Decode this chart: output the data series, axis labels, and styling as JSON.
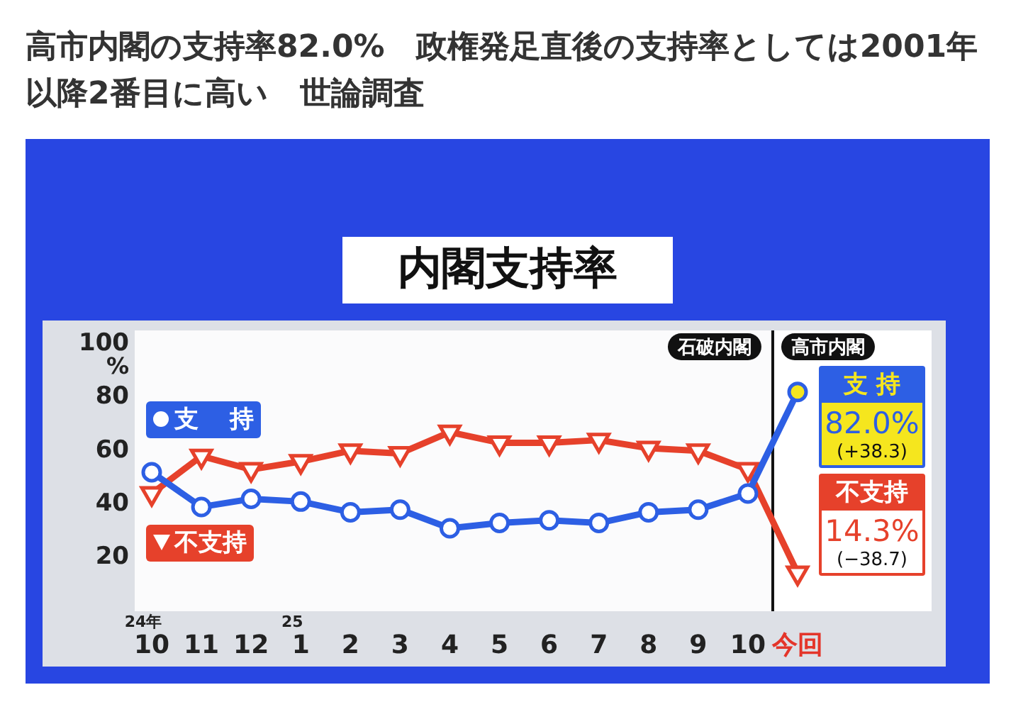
{
  "chart_data": {
    "type": "line",
    "title": "高市内閣の支持率82.0%　政権発足直後の支持率としては2001年以降2番目に高い　世論調査",
    "subtitle": "内閣支持率",
    "ylabel": "%",
    "categories": [
      "24年 10",
      "11",
      "12",
      "25 1",
      "2",
      "3",
      "4",
      "5",
      "6",
      "7",
      "8",
      "9",
      "10",
      "今回"
    ],
    "series": [
      {
        "name": "支 持",
        "color": "#2d5fe4",
        "marker": "circle",
        "values": [
          52,
          39,
          42,
          41,
          37,
          38,
          31,
          33,
          34,
          33,
          37,
          38,
          44,
          82.0
        ],
        "colors": [
          "#ffffff",
          "#ffffff",
          "#ffffff",
          "#ffffff",
          "#ffffff",
          "#ffffff",
          "#ffffff",
          "#ffffff",
          "#ffffff",
          "#ffffff",
          "#ffffff",
          "#ffffff",
          "#ffffff",
          "#f5e61e"
        ],
        "value_labels": [
          null,
          null,
          null,
          null,
          null,
          null,
          null,
          null,
          null,
          null,
          null,
          null,
          null,
          "82.0%"
        ]
      },
      {
        "name": "不支持",
        "color": "#e6412b",
        "marker": "triangle",
        "values": [
          44,
          58,
          53,
          56,
          60,
          59,
          67,
          63,
          63,
          64,
          61,
          60,
          53,
          14.3
        ],
        "value_labels": [
          null,
          null,
          null,
          null,
          null,
          null,
          null,
          null,
          null,
          null,
          null,
          null,
          null,
          "14.3%"
        ]
      }
    ],
    "ylim": [
      0,
      105
    ],
    "yticks": [
      20,
      40,
      60,
      80,
      100
    ],
    "legend": "left",
    "bands": [
      {
        "axis": "x",
        "from": "今回",
        "to": "今回",
        "color": "#ffffff"
      }
    ],
    "annotations": [
      "石破内閣",
      "高市内閣",
      "(+38.3)",
      "(−38.7)"
    ]
  }
}
